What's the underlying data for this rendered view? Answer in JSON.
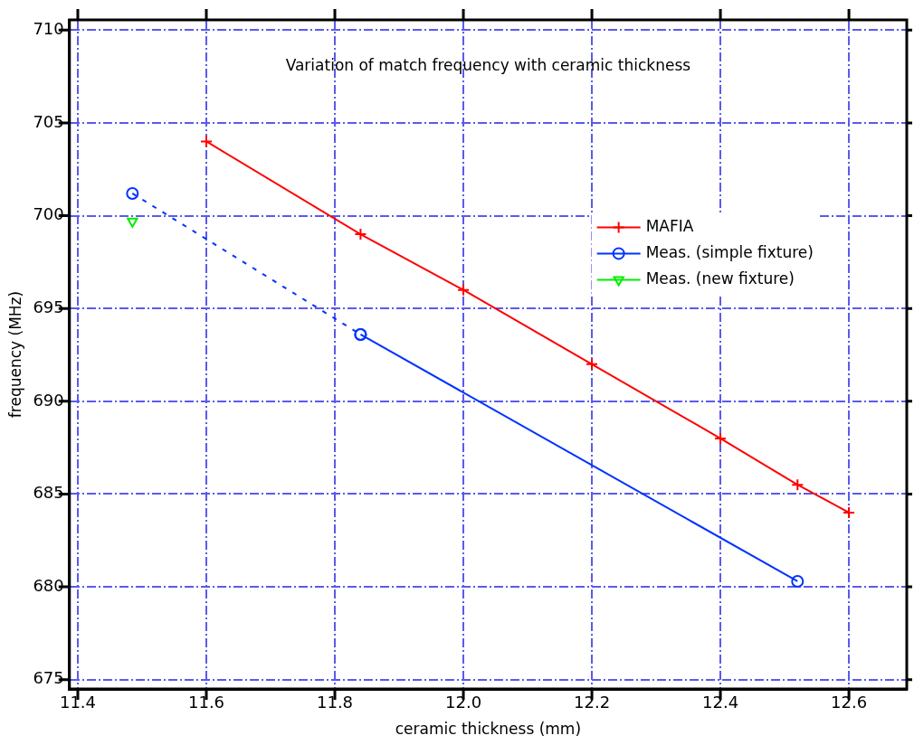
{
  "chart_data": {
    "type": "line",
    "title": "Variation of match frequency with ceramic thickness",
    "xlabel": "ceramic thickness (mm)",
    "ylabel": "frequency (MHz)",
    "xlim": [
      11.387,
      12.69
    ],
    "xticks": [
      {
        "value": 11.4,
        "label": "11.4"
      },
      {
        "value": 11.6,
        "label": "11.6"
      },
      {
        "value": 11.8,
        "label": "11.8"
      },
      {
        "value": 12.0,
        "label": "12.0"
      },
      {
        "value": 12.2,
        "label": "12.2"
      },
      {
        "value": 12.4,
        "label": "12.4"
      },
      {
        "value": 12.6,
        "label": "12.6"
      }
    ],
    "ylim": [
      674.5,
      710.55
    ],
    "yticks": [
      675,
      680,
      685,
      690,
      695,
      700,
      705,
      710
    ],
    "grid": true,
    "legend": "right",
    "series": [
      {
        "name": "MAFIA",
        "color": "#ff0000",
        "marker": "cross",
        "line_style": "solid",
        "x": [
          11.6,
          11.84,
          12.0,
          12.2,
          12.4,
          12.52,
          12.6
        ],
        "values": [
          704,
          699,
          696,
          692,
          688,
          685.5,
          684
        ]
      },
      {
        "name": "Meas. (simple fixture)",
        "color": "#0033ff",
        "marker": "circle",
        "line_style": "solid",
        "x": [
          11.84,
          12.52
        ],
        "values": [
          693.6,
          680.3
        ]
      },
      {
        "color": "#0033ff",
        "marker": "circle",
        "line_style": "dashed",
        "x": [
          11.485,
          11.84
        ],
        "values": [
          701.2,
          693.6
        ]
      },
      {
        "name": "Meas. (new fixture)",
        "color": "#00ee00",
        "marker": "triangle",
        "line_style": "solid",
        "x": [
          11.485
        ],
        "values": [
          699.7
        ]
      }
    ]
  }
}
